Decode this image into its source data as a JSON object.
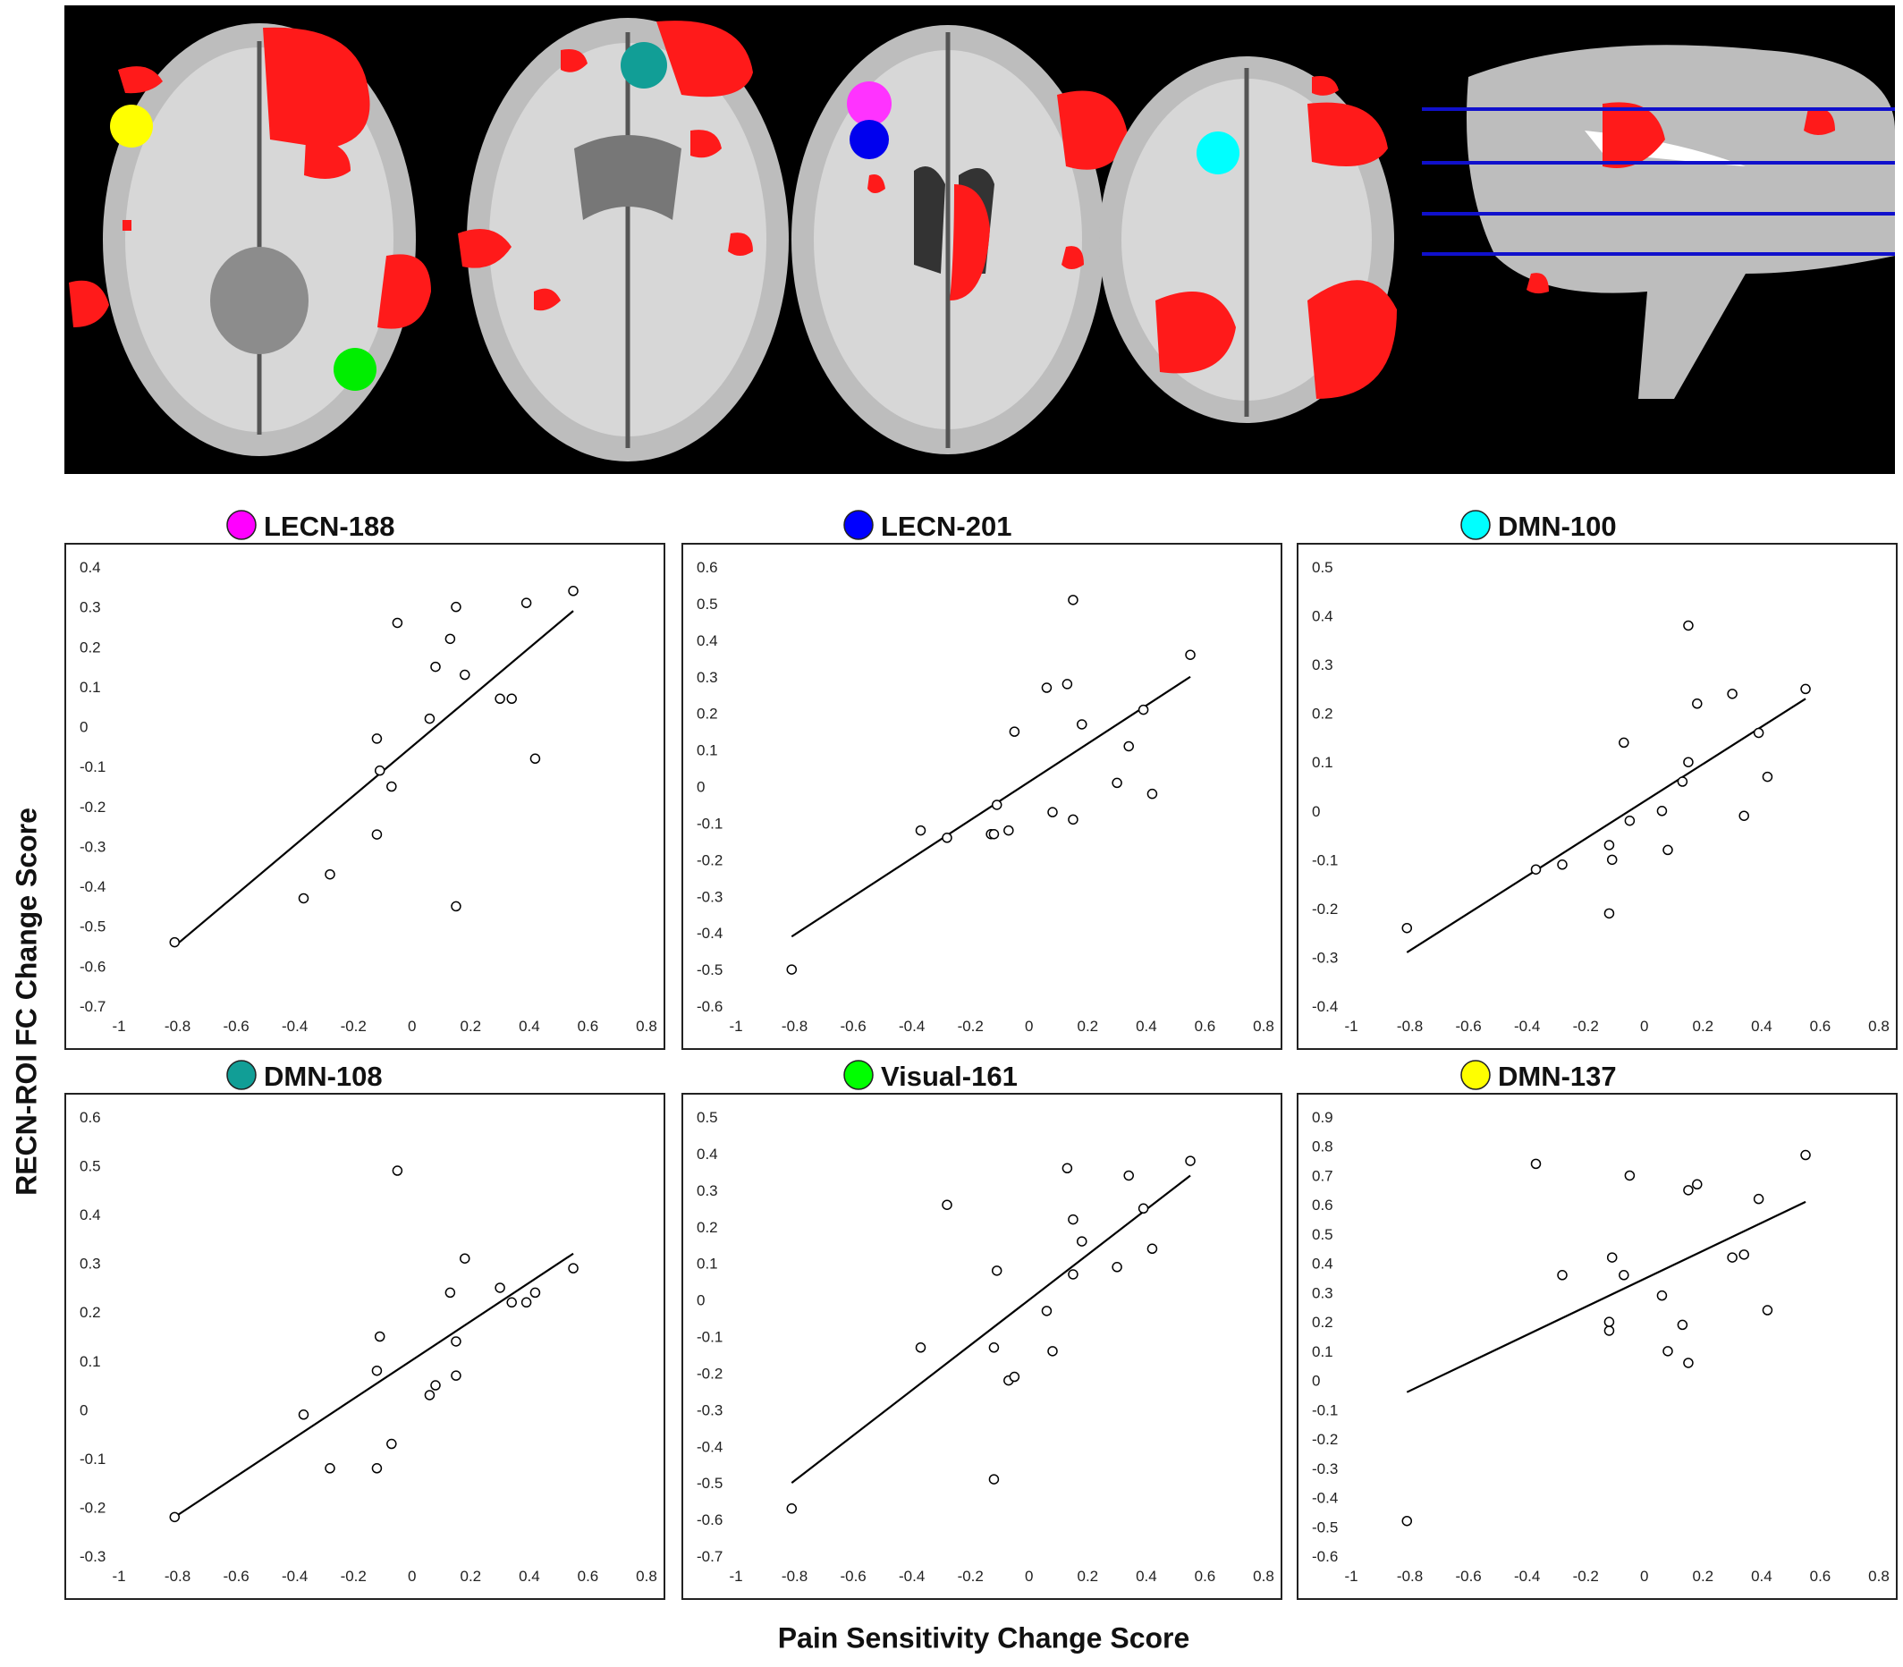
{
  "page": {
    "ylabel": "RECN-ROI FC Change Score",
    "xlabel": "Pain Sensitivity Change Score"
  },
  "brain_image": {
    "description_icon": "brain-slices-image",
    "roi_colors": [
      "#ff00ff",
      "#0000ff",
      "#00ffff",
      "#119e96",
      "#00ff00",
      "#ffff00"
    ]
  },
  "chart_data": [
    {
      "type": "scatter",
      "title": "LECN-188",
      "marker_color": "#ff00ff",
      "xlim": [
        -1,
        0.8
      ],
      "ylim": [
        -0.7,
        0.4
      ],
      "xticks": [
        "-1",
        "-0.8",
        "-0.6",
        "-0.4",
        "-0.2",
        "0",
        "0.2",
        "0.4",
        "0.6",
        "0.8"
      ],
      "yticks": [
        "0.4",
        "0.3",
        "0.2",
        "0.1",
        "0",
        "-0.1",
        "-0.2",
        "-0.3",
        "-0.4",
        "-0.5",
        "-0.6",
        "-0.7"
      ],
      "points": [
        [
          -0.81,
          -0.54
        ],
        [
          -0.37,
          -0.43
        ],
        [
          -0.28,
          -0.37
        ],
        [
          -0.12,
          -0.27
        ],
        [
          -0.11,
          -0.11
        ],
        [
          -0.12,
          -0.03
        ],
        [
          -0.07,
          -0.15
        ],
        [
          -0.05,
          0.26
        ],
        [
          0.06,
          0.02
        ],
        [
          0.08,
          0.15
        ],
        [
          0.13,
          0.22
        ],
        [
          0.15,
          0.3
        ],
        [
          0.18,
          0.13
        ],
        [
          0.15,
          -0.45
        ],
        [
          0.3,
          0.07
        ],
        [
          0.34,
          0.07
        ],
        [
          0.39,
          0.31
        ],
        [
          0.42,
          -0.08
        ],
        [
          0.55,
          0.34
        ]
      ],
      "fit_line": [
        [
          -0.81,
          -0.55
        ],
        [
          0.55,
          0.29
        ]
      ]
    },
    {
      "type": "scatter",
      "title": "LECN-201",
      "marker_color": "#0000ff",
      "xlim": [
        -1,
        0.8
      ],
      "ylim": [
        -0.6,
        0.6
      ],
      "xticks": [
        "-1",
        "-0.8",
        "-0.6",
        "-0.4",
        "-0.2",
        "0",
        "0.2",
        "0.4",
        "0.6",
        "0.8"
      ],
      "yticks": [
        "0.6",
        "0.5",
        "0.4",
        "0.3",
        "0.2",
        "0.1",
        "0",
        "-0.1",
        "-0.2",
        "-0.3",
        "-0.4",
        "-0.5",
        "-0.6"
      ],
      "points": [
        [
          -0.81,
          -0.5
        ],
        [
          -0.37,
          -0.12
        ],
        [
          -0.28,
          -0.14
        ],
        [
          -0.13,
          -0.13
        ],
        [
          -0.12,
          -0.13
        ],
        [
          -0.11,
          -0.05
        ],
        [
          -0.07,
          -0.12
        ],
        [
          -0.05,
          0.15
        ],
        [
          0.06,
          0.27
        ],
        [
          0.08,
          -0.07
        ],
        [
          0.13,
          0.28
        ],
        [
          0.15,
          0.51
        ],
        [
          0.15,
          -0.09
        ],
        [
          0.18,
          0.17
        ],
        [
          0.3,
          0.01
        ],
        [
          0.34,
          0.11
        ],
        [
          0.39,
          0.21
        ],
        [
          0.42,
          -0.02
        ],
        [
          0.55,
          0.36
        ]
      ],
      "fit_line": [
        [
          -0.81,
          -0.41
        ],
        [
          0.55,
          0.3
        ]
      ]
    },
    {
      "type": "scatter",
      "title": "DMN-100",
      "marker_color": "#00ffff",
      "xlim": [
        -1,
        0.8
      ],
      "ylim": [
        -0.4,
        0.5
      ],
      "xticks": [
        "-1",
        "-0.8",
        "-0.6",
        "-0.4",
        "-0.2",
        "0",
        "0.2",
        "0.4",
        "0.6",
        "0.8"
      ],
      "yticks": [
        "0.5",
        "0.4",
        "0.3",
        "0.2",
        "0.1",
        "0",
        "-0.1",
        "-0.2",
        "-0.3",
        "-0.4"
      ],
      "points": [
        [
          -0.81,
          -0.24
        ],
        [
          -0.37,
          -0.12
        ],
        [
          -0.28,
          -0.11
        ],
        [
          -0.12,
          -0.07
        ],
        [
          -0.11,
          -0.1
        ],
        [
          -0.12,
          -0.21
        ],
        [
          -0.07,
          0.14
        ],
        [
          -0.05,
          -0.02
        ],
        [
          0.06,
          0.0
        ],
        [
          0.08,
          -0.08
        ],
        [
          0.13,
          0.06
        ],
        [
          0.15,
          0.38
        ],
        [
          0.15,
          0.1
        ],
        [
          0.18,
          0.22
        ],
        [
          0.3,
          0.24
        ],
        [
          0.34,
          -0.01
        ],
        [
          0.39,
          0.16
        ],
        [
          0.42,
          0.07
        ],
        [
          0.55,
          0.25
        ]
      ],
      "fit_line": [
        [
          -0.81,
          -0.29
        ],
        [
          0.55,
          0.23
        ]
      ]
    },
    {
      "type": "scatter",
      "title": "DMN-108",
      "marker_color": "#119e96",
      "xlim": [
        -1,
        0.8
      ],
      "ylim": [
        -0.3,
        0.6
      ],
      "xticks": [
        "-1",
        "-0.8",
        "-0.6",
        "-0.4",
        "-0.2",
        "0",
        "0.2",
        "0.4",
        "0.6",
        "0.8"
      ],
      "yticks": [
        "0.6",
        "0.5",
        "0.4",
        "0.3",
        "0.2",
        "0.1",
        "0",
        "-0.1",
        "-0.2",
        "-0.3"
      ],
      "points": [
        [
          -0.81,
          -0.22
        ],
        [
          -0.37,
          -0.01
        ],
        [
          -0.28,
          -0.12
        ],
        [
          -0.12,
          -0.12
        ],
        [
          -0.12,
          0.08
        ],
        [
          -0.11,
          0.15
        ],
        [
          -0.07,
          -0.07
        ],
        [
          -0.05,
          0.49
        ],
        [
          0.06,
          0.03
        ],
        [
          0.08,
          0.05
        ],
        [
          0.13,
          0.24
        ],
        [
          0.15,
          0.14
        ],
        [
          0.15,
          0.07
        ],
        [
          0.18,
          0.31
        ],
        [
          0.3,
          0.25
        ],
        [
          0.34,
          0.22
        ],
        [
          0.39,
          0.22
        ],
        [
          0.42,
          0.24
        ],
        [
          0.55,
          0.29
        ]
      ],
      "fit_line": [
        [
          -0.81,
          -0.22
        ],
        [
          0.55,
          0.32
        ]
      ]
    },
    {
      "type": "scatter",
      "title": "Visual-161",
      "marker_color": "#00ff00",
      "xlim": [
        -1,
        0.8
      ],
      "ylim": [
        -0.7,
        0.5
      ],
      "xticks": [
        "-1",
        "-0.8",
        "-0.6",
        "-0.4",
        "-0.2",
        "0",
        "0.2",
        "0.4",
        "0.6",
        "0.8"
      ],
      "yticks": [
        "0.5",
        "0.4",
        "0.3",
        "0.2",
        "0.1",
        "0",
        "-0.1",
        "-0.2",
        "-0.3",
        "-0.4",
        "-0.5",
        "-0.6",
        "-0.7"
      ],
      "points": [
        [
          -0.81,
          -0.57
        ],
        [
          -0.37,
          -0.13
        ],
        [
          -0.28,
          0.26
        ],
        [
          -0.12,
          -0.13
        ],
        [
          -0.11,
          0.08
        ],
        [
          -0.12,
          -0.49
        ],
        [
          -0.07,
          -0.22
        ],
        [
          -0.05,
          -0.21
        ],
        [
          0.06,
          -0.03
        ],
        [
          0.08,
          -0.14
        ],
        [
          0.13,
          0.36
        ],
        [
          0.15,
          0.22
        ],
        [
          0.15,
          0.07
        ],
        [
          0.18,
          0.16
        ],
        [
          0.3,
          0.09
        ],
        [
          0.34,
          0.34
        ],
        [
          0.39,
          0.25
        ],
        [
          0.42,
          0.14
        ],
        [
          0.55,
          0.38
        ]
      ],
      "fit_line": [
        [
          -0.81,
          -0.5
        ],
        [
          0.55,
          0.34
        ]
      ]
    },
    {
      "type": "scatter",
      "title": "DMN-137",
      "marker_color": "#ffff00",
      "xlim": [
        -1,
        0.8
      ],
      "ylim": [
        -0.6,
        0.9
      ],
      "xticks": [
        "-1",
        "-0.8",
        "-0.6",
        "-0.4",
        "-0.2",
        "0",
        "0.2",
        "0.4",
        "0.6",
        "0.8"
      ],
      "yticks": [
        "0.9",
        "0.8",
        "0.7",
        "0.6",
        "0.5",
        "0.4",
        "0.3",
        "0.2",
        "0.1",
        "0",
        "-0.1",
        "-0.2",
        "-0.3",
        "-0.4",
        "-0.5",
        "-0.6"
      ],
      "points": [
        [
          -0.81,
          -0.48
        ],
        [
          -0.37,
          0.74
        ],
        [
          -0.28,
          0.36
        ],
        [
          -0.12,
          0.17
        ],
        [
          -0.12,
          0.2
        ],
        [
          -0.11,
          0.42
        ],
        [
          -0.07,
          0.36
        ],
        [
          -0.05,
          0.7
        ],
        [
          0.06,
          0.29
        ],
        [
          0.08,
          0.1
        ],
        [
          0.13,
          0.19
        ],
        [
          0.15,
          0.65
        ],
        [
          0.15,
          0.06
        ],
        [
          0.18,
          0.67
        ],
        [
          0.3,
          0.42
        ],
        [
          0.34,
          0.43
        ],
        [
          0.39,
          0.62
        ],
        [
          0.42,
          0.24
        ],
        [
          0.55,
          0.77
        ]
      ],
      "fit_line": [
        [
          -0.81,
          -0.04
        ],
        [
          0.55,
          0.61
        ]
      ]
    }
  ]
}
